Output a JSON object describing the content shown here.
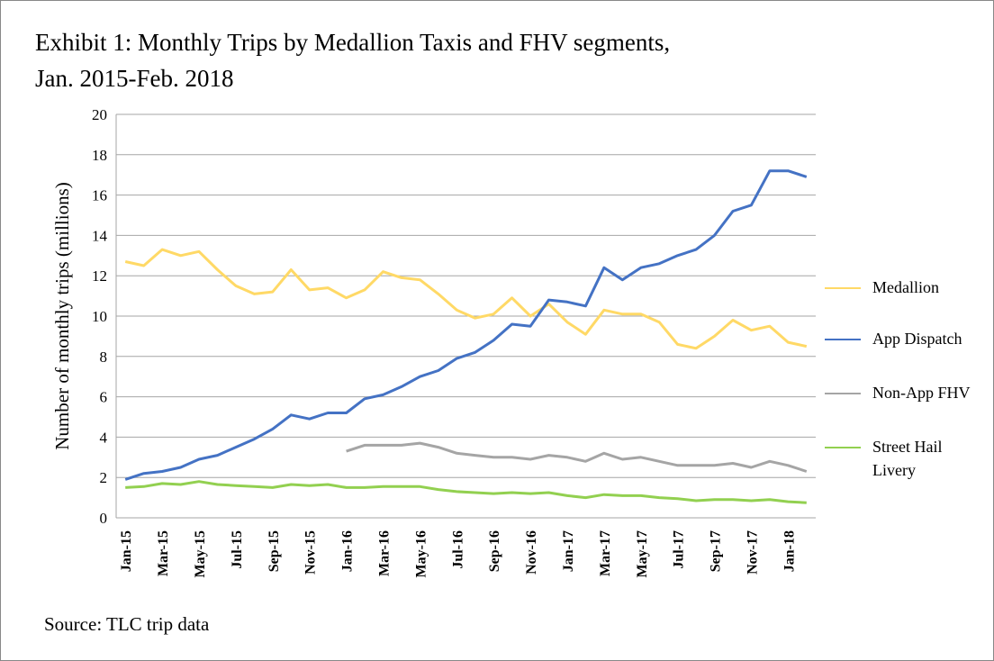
{
  "chart_data": {
    "type": "line",
    "title": "Exhibit 1: Monthly Trips by Medallion Taxis and FHV segments, Jan. 2015-Feb. 2018",
    "ylabel": "Number of monthly trips (millions)",
    "source": "Source: TLC trip data",
    "categories": [
      "Jan-15",
      null,
      "Mar-15",
      null,
      "May-15",
      null,
      "Jul-15",
      null,
      "Sep-15",
      null,
      "Nov-15",
      null,
      "Jan-16",
      null,
      "Mar-16",
      null,
      "May-16",
      null,
      "Jul-16",
      null,
      "Sep-16",
      null,
      "Nov-16",
      null,
      "Jan-17",
      null,
      "Mar-17",
      null,
      "May-17",
      null,
      "Jul-17",
      null,
      "Sep-17",
      null,
      "Nov-17",
      null,
      "Jan-18",
      null
    ],
    "series": [
      {
        "name": "Medallion",
        "color": "#ffd966",
        "values": [
          12.7,
          12.5,
          13.3,
          13.0,
          13.2,
          12.3,
          11.5,
          11.1,
          11.2,
          12.3,
          11.3,
          11.4,
          10.9,
          11.3,
          12.2,
          11.9,
          11.8,
          11.1,
          10.3,
          9.9,
          10.1,
          10.9,
          10.0,
          10.6,
          9.7,
          9.1,
          10.3,
          10.1,
          10.1,
          9.7,
          8.6,
          8.4,
          9.0,
          9.8,
          9.3,
          9.5,
          8.7,
          8.5
        ]
      },
      {
        "name": "App Dispatch",
        "color": "#4472c4",
        "values": [
          1.9,
          2.2,
          2.3,
          2.5,
          2.9,
          3.1,
          3.5,
          3.9,
          4.4,
          5.1,
          4.9,
          5.2,
          5.2,
          5.9,
          6.1,
          6.5,
          7.0,
          7.3,
          7.9,
          8.2,
          8.8,
          9.6,
          9.5,
          10.8,
          10.7,
          10.5,
          12.4,
          11.8,
          12.4,
          12.6,
          13.0,
          13.3,
          14.0,
          15.2,
          15.5,
          17.2,
          17.2,
          16.9
        ]
      },
      {
        "name": "Non-App FHV",
        "color": "#a5a5a5",
        "values": [
          null,
          null,
          null,
          null,
          null,
          null,
          null,
          null,
          null,
          null,
          null,
          null,
          3.3,
          3.6,
          3.6,
          3.6,
          3.7,
          3.5,
          3.2,
          3.1,
          3.0,
          3.0,
          2.9,
          3.1,
          3.0,
          2.8,
          3.2,
          2.9,
          3.0,
          2.8,
          2.6,
          2.6,
          2.6,
          2.7,
          2.5,
          2.8,
          2.6,
          2.3
        ]
      },
      {
        "name": "Street Hail Livery",
        "color": "#92d050",
        "values": [
          1.5,
          1.55,
          1.7,
          1.65,
          1.8,
          1.65,
          1.6,
          1.55,
          1.5,
          1.65,
          1.6,
          1.65,
          1.5,
          1.5,
          1.55,
          1.55,
          1.55,
          1.4,
          1.3,
          1.25,
          1.2,
          1.25,
          1.2,
          1.25,
          1.1,
          1.0,
          1.15,
          1.1,
          1.1,
          1.0,
          0.95,
          0.85,
          0.9,
          0.9,
          0.85,
          0.9,
          0.8,
          0.75
        ]
      }
    ],
    "ylim": [
      0,
      20
    ],
    "yticks": [
      0,
      2,
      4,
      6,
      8,
      10,
      12,
      14,
      16,
      18,
      20
    ],
    "grid": true
  }
}
